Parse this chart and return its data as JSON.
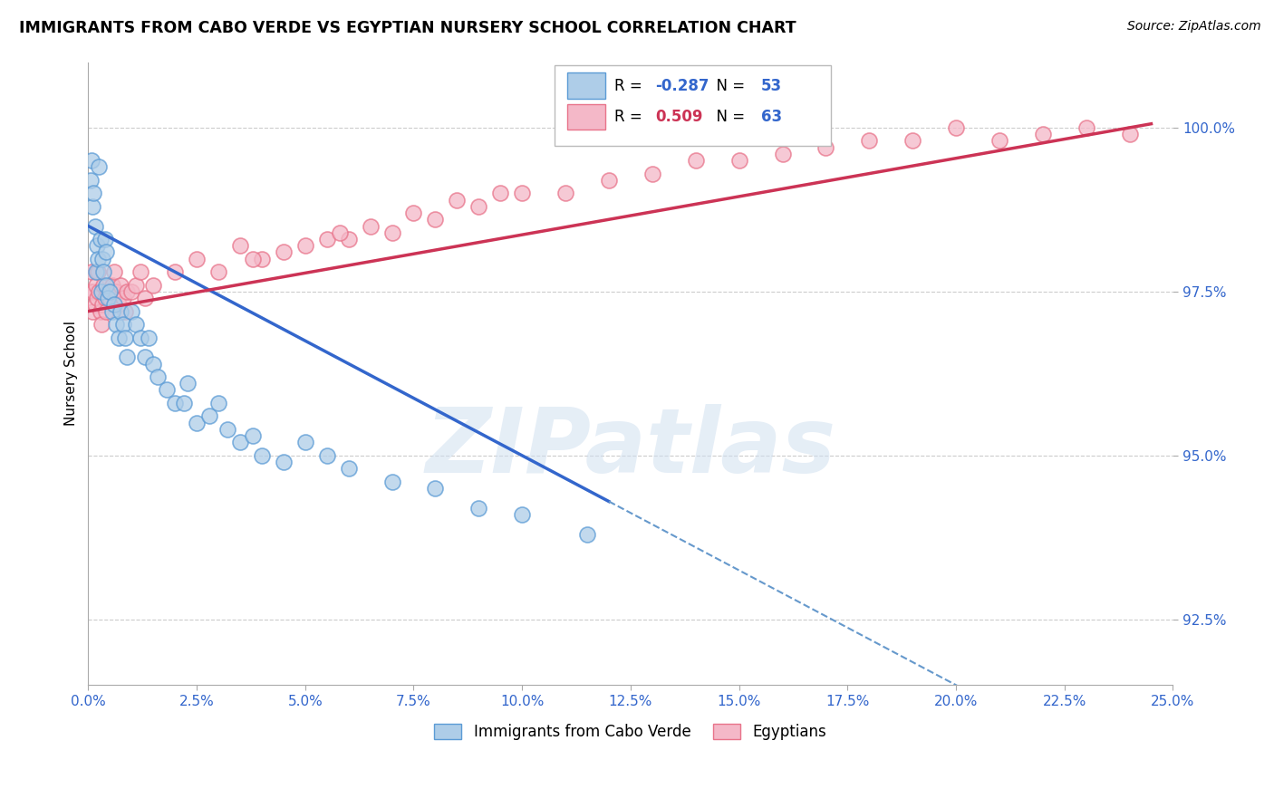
{
  "title": "IMMIGRANTS FROM CABO VERDE VS EGYPTIAN NURSERY SCHOOL CORRELATION CHART",
  "source_text": "Source: ZipAtlas.com",
  "ylabel": "Nursery School",
  "xlim": [
    0.0,
    25.0
  ],
  "ylim": [
    91.5,
    101.0
  ],
  "xtick_values": [
    0.0,
    2.5,
    5.0,
    7.5,
    10.0,
    12.5,
    15.0,
    17.5,
    20.0,
    22.5,
    25.0
  ],
  "ytick_values": [
    92.5,
    95.0,
    97.5,
    100.0
  ],
  "ytick_labels": [
    "92.5%",
    "95.0%",
    "97.5%",
    "100.0%"
  ],
  "blue_R": -0.287,
  "blue_N": 53,
  "pink_R": 0.509,
  "pink_N": 63,
  "blue_color": "#aecde8",
  "blue_edge_color": "#5b9bd5",
  "pink_color": "#f4b8c8",
  "pink_edge_color": "#e8738a",
  "blue_line_color": "#3366cc",
  "blue_dash_color": "#6699cc",
  "pink_line_color": "#cc3355",
  "legend_label_blue": "Immigrants from Cabo Verde",
  "legend_label_pink": "Egyptians",
  "watermark": "ZIPatlas",
  "blue_x": [
    0.05,
    0.08,
    0.1,
    0.12,
    0.15,
    0.18,
    0.2,
    0.22,
    0.25,
    0.28,
    0.3,
    0.32,
    0.35,
    0.38,
    0.4,
    0.42,
    0.45,
    0.5,
    0.55,
    0.6,
    0.65,
    0.7,
    0.75,
    0.8,
    0.85,
    0.9,
    1.0,
    1.1,
    1.2,
    1.3,
    1.4,
    1.5,
    1.6,
    1.8,
    2.0,
    2.2,
    2.5,
    2.8,
    3.2,
    3.5,
    4.0,
    4.5,
    5.0,
    5.5,
    6.0,
    7.0,
    8.0,
    9.0,
    10.0,
    11.5,
    3.0,
    3.8,
    2.3
  ],
  "blue_y": [
    99.2,
    99.5,
    98.8,
    99.0,
    98.5,
    97.8,
    98.2,
    98.0,
    99.4,
    98.3,
    97.5,
    98.0,
    97.8,
    98.3,
    97.6,
    98.1,
    97.4,
    97.5,
    97.2,
    97.3,
    97.0,
    96.8,
    97.2,
    97.0,
    96.8,
    96.5,
    97.2,
    97.0,
    96.8,
    96.5,
    96.8,
    96.4,
    96.2,
    96.0,
    95.8,
    95.8,
    95.5,
    95.6,
    95.4,
    95.2,
    95.0,
    94.9,
    95.2,
    95.0,
    94.8,
    94.6,
    94.5,
    94.2,
    94.1,
    93.8,
    95.8,
    95.3,
    96.1
  ],
  "pink_x": [
    0.05,
    0.08,
    0.1,
    0.12,
    0.15,
    0.18,
    0.2,
    0.22,
    0.25,
    0.28,
    0.3,
    0.32,
    0.35,
    0.38,
    0.4,
    0.45,
    0.5,
    0.55,
    0.6,
    0.65,
    0.7,
    0.75,
    0.8,
    0.85,
    0.9,
    1.0,
    1.1,
    1.2,
    1.3,
    1.5,
    2.0,
    2.5,
    3.0,
    3.5,
    4.0,
    5.0,
    5.5,
    6.5,
    7.0,
    8.0,
    9.0,
    10.0,
    11.0,
    12.0,
    13.0,
    14.0,
    15.0,
    16.0,
    17.0,
    18.0,
    19.0,
    20.0,
    21.0,
    22.0,
    23.0,
    24.0,
    4.5,
    6.0,
    3.8,
    5.8,
    7.5,
    8.5,
    9.5
  ],
  "pink_y": [
    97.5,
    97.8,
    97.2,
    97.5,
    97.3,
    97.6,
    97.4,
    97.8,
    97.5,
    97.2,
    97.0,
    97.3,
    97.6,
    97.4,
    97.2,
    97.5,
    97.4,
    97.6,
    97.8,
    97.5,
    97.3,
    97.6,
    97.4,
    97.2,
    97.5,
    97.5,
    97.6,
    97.8,
    97.4,
    97.6,
    97.8,
    98.0,
    97.8,
    98.2,
    98.0,
    98.2,
    98.3,
    98.5,
    98.4,
    98.6,
    98.8,
    99.0,
    99.0,
    99.2,
    99.3,
    99.5,
    99.5,
    99.6,
    99.7,
    99.8,
    99.8,
    100.0,
    99.8,
    99.9,
    100.0,
    99.9,
    98.1,
    98.3,
    98.0,
    98.4,
    98.7,
    98.9,
    99.0
  ]
}
